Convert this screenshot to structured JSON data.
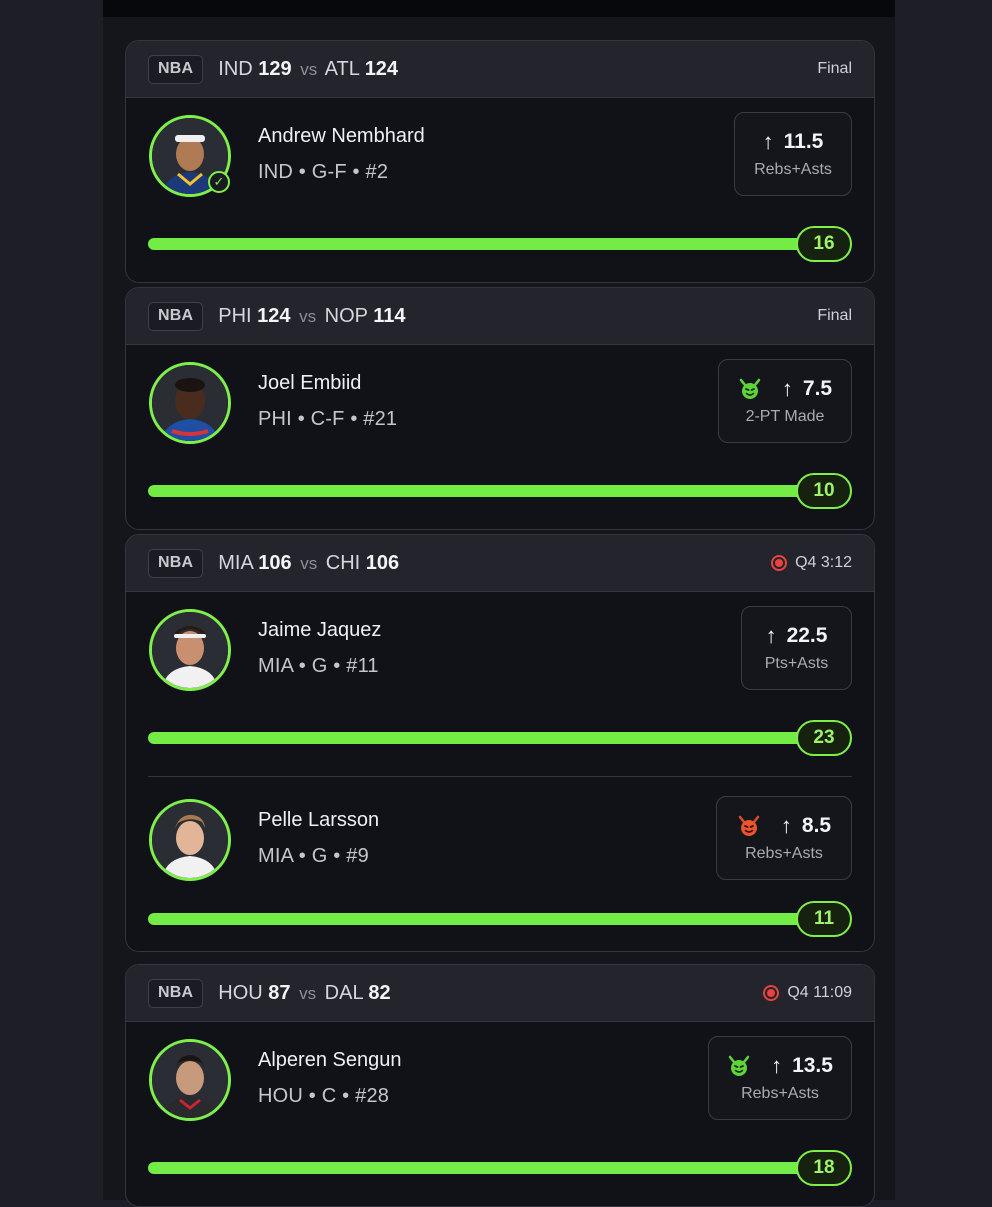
{
  "cards": [
    {
      "league": "NBA",
      "home": {
        "team": "IND",
        "score": "129"
      },
      "vs": "vs",
      "away": {
        "team": "ATL",
        "score": "124"
      },
      "status": "Final",
      "live": false,
      "picks": [
        {
          "name": "Andrew Nembhard",
          "meta": "IND • G-F • #2",
          "direction": "↑",
          "line": "11.5",
          "stat": "Rebs+Asts",
          "result": "16",
          "progress": 1.0,
          "badge": "none",
          "checked": true
        }
      ]
    },
    {
      "league": "NBA",
      "home": {
        "team": "PHI",
        "score": "124"
      },
      "vs": "vs",
      "away": {
        "team": "NOP",
        "score": "114"
      },
      "status": "Final",
      "live": false,
      "picks": [
        {
          "name": "Joel Embiid",
          "meta": "PHI • C-F • #21",
          "direction": "↑",
          "line": "7.5",
          "stat": "2-PT Made",
          "result": "10",
          "progress": 1.0,
          "badge": "green-devil",
          "checked": false
        }
      ]
    },
    {
      "league": "NBA",
      "home": {
        "team": "MIA",
        "score": "106"
      },
      "vs": "vs",
      "away": {
        "team": "CHI",
        "score": "106"
      },
      "status": "Q4 3:12",
      "live": true,
      "picks": [
        {
          "name": "Jaime Jaquez",
          "meta": "MIA • G • #11",
          "direction": "↑",
          "line": "22.5",
          "stat": "Pts+Asts",
          "result": "23",
          "progress": 1.0,
          "badge": "none",
          "checked": false
        },
        {
          "name": "Pelle Larsson",
          "meta": "MIA • G • #9",
          "direction": "↑",
          "line": "8.5",
          "stat": "Rebs+Asts",
          "result": "11",
          "progress": 1.0,
          "badge": "red-devil",
          "checked": false
        }
      ]
    },
    {
      "league": "NBA",
      "home": {
        "team": "HOU",
        "score": "87"
      },
      "vs": "vs",
      "away": {
        "team": "DAL",
        "score": "82"
      },
      "status": "Q4 11:09",
      "live": true,
      "picks": [
        {
          "name": "Alperen Sengun",
          "meta": "HOU • C • #28",
          "direction": "↑",
          "line": "13.5",
          "stat": "Rebs+Asts",
          "result": "18",
          "progress": 1.0,
          "badge": "green-devil",
          "checked": false
        }
      ]
    }
  ],
  "colors": {
    "accent": "#7ff04a",
    "live": "#e8433f",
    "background": "#15161c"
  }
}
